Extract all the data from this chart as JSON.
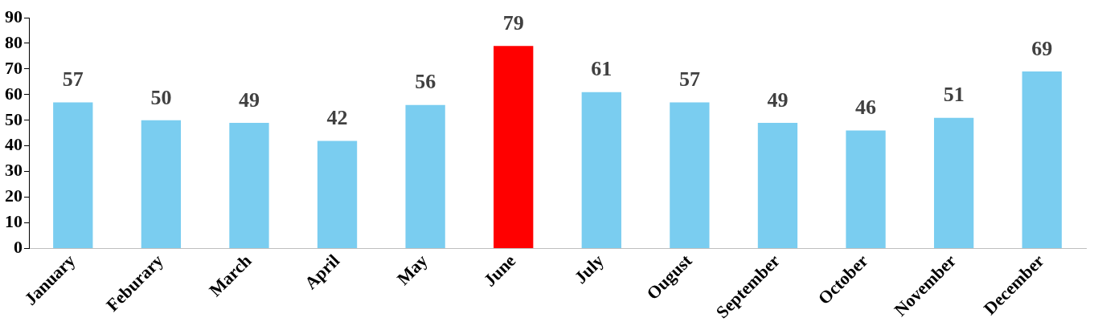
{
  "chart_data": {
    "type": "bar",
    "categories": [
      "January",
      "Feburary",
      "March",
      "April",
      "May",
      "June",
      "July",
      "Ougust",
      "September",
      "October",
      "November",
      "December"
    ],
    "values": [
      57,
      50,
      49,
      42,
      56,
      79,
      61,
      57,
      49,
      46,
      51,
      69
    ],
    "colors": [
      "#7acdf0",
      "#7acdf0",
      "#7acdf0",
      "#7acdf0",
      "#7acdf0",
      "#ff0000",
      "#7acdf0",
      "#7acdf0",
      "#7acdf0",
      "#7acdf0",
      "#7acdf0",
      "#7acdf0"
    ],
    "ylim": [
      0,
      90
    ],
    "yticks": [
      0,
      10,
      20,
      30,
      40,
      50,
      60,
      70,
      80,
      90
    ],
    "grid": false,
    "legend": false,
    "data_labels": true
  }
}
